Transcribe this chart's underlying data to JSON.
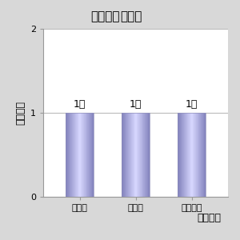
{
  "title_normal": "ジャナル",
  "title_bold": "指の向",
  "categories": [
    "着な加",
    "化なし",
    "徐々に少"
  ],
  "values": [
    1,
    1,
    1
  ],
  "bar_labels": [
    "1人",
    "1人",
    "1人"
  ],
  "ylabel": "延べ人数",
  "xlabel": "来年の予",
  "ylim": [
    0,
    2
  ],
  "yticks": [
    0,
    1,
    2
  ],
  "bar_color_dark": "#8080bb",
  "bar_color_light": "#d8d8ff",
  "bg_color": "#d8d8d8",
  "plot_bg_color": "#ffffff",
  "grid_color": "#bbbbbb",
  "label_fontsize": 9,
  "tick_fontsize": 8,
  "bar_label_fontsize": 9,
  "title_fontsize": 11
}
